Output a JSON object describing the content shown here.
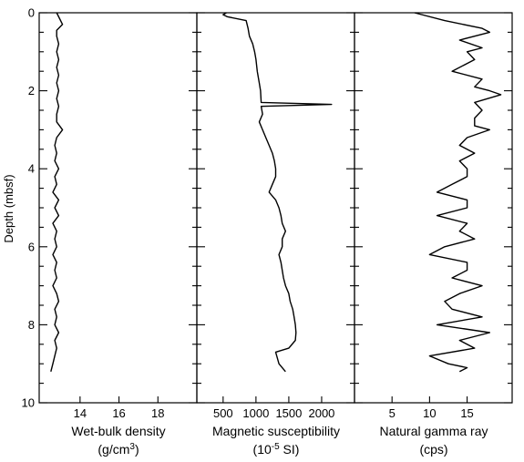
{
  "chart_data": {
    "type": "line",
    "shared_y": {
      "label": "Depth (mbsf)",
      "range": [
        0,
        10
      ],
      "inverted": true,
      "ticks": [
        0,
        2,
        4,
        6,
        8,
        10
      ],
      "tick_labels": [
        "0",
        "2",
        "4",
        "6",
        "8",
        "10"
      ]
    },
    "panels": [
      {
        "id": "density",
        "xlabel_line1": "Wet-bulk density",
        "xlabel_line2_pre": "(g/cm",
        "xlabel_line2_sup": "3",
        "xlabel_line2_post": ")",
        "xlim": [
          11.9,
          20
        ],
        "xticks": [
          14,
          16,
          18
        ],
        "xtick_labels": [
          "14",
          "16",
          "18"
        ],
        "series": [
          {
            "values": [
              [
                12.8,
                0.0
              ],
              [
                13.1,
                0.3
              ],
              [
                12.8,
                0.45
              ],
              [
                12.8,
                0.6
              ],
              [
                12.9,
                0.8
              ],
              [
                12.8,
                1.0
              ],
              [
                12.9,
                1.2
              ],
              [
                12.8,
                1.4
              ],
              [
                12.9,
                1.6
              ],
              [
                12.8,
                1.8
              ],
              [
                12.9,
                2.0
              ],
              [
                12.8,
                2.2
              ],
              [
                12.9,
                2.4
              ],
              [
                12.8,
                2.6
              ],
              [
                12.8,
                2.8
              ],
              [
                13.1,
                3.0
              ],
              [
                12.8,
                3.2
              ],
              [
                12.7,
                3.4
              ],
              [
                12.8,
                3.6
              ],
              [
                12.7,
                3.8
              ],
              [
                12.9,
                4.0
              ],
              [
                12.7,
                4.2
              ],
              [
                12.8,
                4.4
              ],
              [
                12.6,
                4.6
              ],
              [
                12.9,
                4.8
              ],
              [
                12.7,
                5.0
              ],
              [
                12.9,
                5.2
              ],
              [
                12.6,
                5.4
              ],
              [
                12.8,
                5.6
              ],
              [
                12.7,
                5.8
              ],
              [
                12.8,
                6.0
              ],
              [
                12.6,
                6.2
              ],
              [
                12.8,
                6.4
              ],
              [
                12.7,
                6.6
              ],
              [
                12.8,
                6.8
              ],
              [
                12.6,
                7.0
              ],
              [
                12.8,
                7.2
              ],
              [
                12.9,
                7.4
              ],
              [
                12.7,
                7.6
              ],
              [
                12.8,
                7.8
              ],
              [
                12.7,
                8.0
              ],
              [
                12.9,
                8.2
              ],
              [
                12.7,
                8.4
              ],
              [
                12.8,
                8.6
              ],
              [
                12.7,
                8.8
              ],
              [
                12.6,
                9.0
              ],
              [
                12.5,
                9.2
              ]
            ]
          }
        ]
      },
      {
        "id": "susceptibility",
        "xlabel_line1": "Magnetic susceptibility",
        "xlabel_line2_pre": "(10",
        "xlabel_line2_sup": "-5",
        "xlabel_line2_post": " SI)",
        "xlim": [
          100,
          2500
        ],
        "xticks": [
          500,
          1000,
          1500,
          2000
        ],
        "xtick_labels": [
          "500",
          "1000",
          "1500",
          "2000"
        ],
        "series": [
          {
            "values": [
              [
                550,
                0.0
              ],
              [
                500,
                0.05
              ],
              [
                560,
                0.1
              ],
              [
                850,
                0.2
              ],
              [
                880,
                0.4
              ],
              [
                900,
                0.6
              ],
              [
                950,
                0.8
              ],
              [
                980,
                1.0
              ],
              [
                1000,
                1.2
              ],
              [
                1020,
                1.5
              ],
              [
                1050,
                1.8
              ],
              [
                1070,
                2.0
              ],
              [
                1080,
                2.3
              ],
              [
                2150,
                2.35
              ],
              [
                1080,
                2.4
              ],
              [
                1100,
                2.6
              ],
              [
                1050,
                2.8
              ],
              [
                1100,
                3.0
              ],
              [
                1150,
                3.2
              ],
              [
                1200,
                3.4
              ],
              [
                1250,
                3.6
              ],
              [
                1280,
                3.8
              ],
              [
                1300,
                4.0
              ],
              [
                1300,
                4.2
              ],
              [
                1250,
                4.4
              ],
              [
                1200,
                4.6
              ],
              [
                1300,
                4.8
              ],
              [
                1350,
                5.0
              ],
              [
                1380,
                5.2
              ],
              [
                1400,
                5.4
              ],
              [
                1450,
                5.6
              ],
              [
                1400,
                5.8
              ],
              [
                1400,
                6.0
              ],
              [
                1350,
                6.2
              ],
              [
                1380,
                6.4
              ],
              [
                1400,
                6.6
              ],
              [
                1420,
                6.8
              ],
              [
                1450,
                7.0
              ],
              [
                1500,
                7.2
              ],
              [
                1520,
                7.4
              ],
              [
                1560,
                7.6
              ],
              [
                1580,
                7.8
              ],
              [
                1600,
                8.0
              ],
              [
                1610,
                8.2
              ],
              [
                1600,
                8.4
              ],
              [
                1500,
                8.6
              ],
              [
                1300,
                8.7
              ],
              [
                1350,
                9.0
              ],
              [
                1450,
                9.2
              ]
            ]
          }
        ]
      },
      {
        "id": "gamma",
        "xlabel_line1": "Natural gamma ray",
        "xlabel_line2_pre": "(cps)",
        "xlabel_line2_sup": "",
        "xlabel_line2_post": "",
        "xlim": [
          0,
          21
        ],
        "xticks": [
          5,
          10,
          15
        ],
        "xtick_labels": [
          "5",
          "10",
          "15"
        ],
        "series": [
          {
            "values": [
              [
                8,
                0.0
              ],
              [
                12,
                0.2
              ],
              [
                17,
                0.4
              ],
              [
                18,
                0.5
              ],
              [
                14,
                0.7
              ],
              [
                17,
                0.9
              ],
              [
                15,
                1.0
              ],
              [
                16,
                1.2
              ],
              [
                13,
                1.5
              ],
              [
                17,
                1.7
              ],
              [
                16,
                1.9
              ],
              [
                18,
                2.0
              ],
              [
                19.5,
                2.1
              ],
              [
                16,
                2.3
              ],
              [
                17,
                2.5
              ],
              [
                16,
                2.7
              ],
              [
                16,
                2.9
              ],
              [
                18,
                3.0
              ],
              [
                15,
                3.2
              ],
              [
                14,
                3.4
              ],
              [
                16,
                3.6
              ],
              [
                14,
                3.8
              ],
              [
                15,
                4.0
              ],
              [
                15,
                4.2
              ],
              [
                13,
                4.4
              ],
              [
                11,
                4.6
              ],
              [
                15,
                4.8
              ],
              [
                15,
                5.0
              ],
              [
                11,
                5.2
              ],
              [
                15,
                5.4
              ],
              [
                14,
                5.6
              ],
              [
                16,
                5.8
              ],
              [
                12,
                6.0
              ],
              [
                10,
                6.2
              ],
              [
                15,
                6.4
              ],
              [
                15,
                6.6
              ],
              [
                13,
                6.8
              ],
              [
                17,
                7.0
              ],
              [
                14,
                7.2
              ],
              [
                12,
                7.4
              ],
              [
                13,
                7.6
              ],
              [
                17,
                7.8
              ],
              [
                11,
                8.0
              ],
              [
                18,
                8.2
              ],
              [
                14,
                8.4
              ],
              [
                16,
                8.6
              ],
              [
                10,
                8.8
              ],
              [
                12.5,
                9.0
              ],
              [
                15,
                9.1
              ],
              [
                14,
                9.2
              ]
            ]
          }
        ]
      }
    ]
  }
}
